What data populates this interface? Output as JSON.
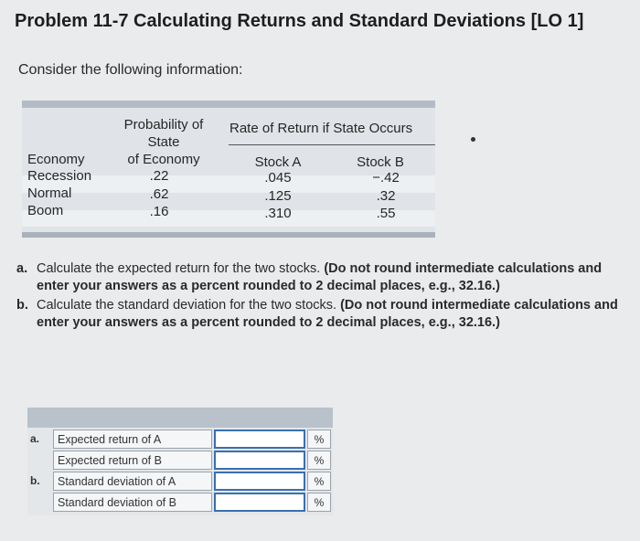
{
  "title": "Problem 11-7 Calculating Returns and Standard Deviations [LO 1]",
  "intro": "Consider the following information:",
  "info_table": {
    "prob_header_line1": "Probability of",
    "prob_header_line2": "State",
    "prob_header_line3": "of Economy",
    "rate_header": "Rate of Return if State Occurs",
    "economy_header": "Economy",
    "stock_a_header": "Stock A",
    "stock_b_header": "Stock B",
    "rows": [
      {
        "state": "Recession",
        "prob": ".22",
        "a": ".045",
        "b": "−.42"
      },
      {
        "state": "Normal",
        "prob": ".62",
        "a": ".125",
        "b": ".32"
      },
      {
        "state": "Boom",
        "prob": ".16",
        "a": ".310",
        "b": ".55"
      }
    ]
  },
  "questions": [
    {
      "label": "a.",
      "text": "Calculate the expected return for the two stocks.",
      "bold": "(Do not round intermediate calculations and enter your answers as a percent rounded to 2 decimal places, e.g., 32.16.)"
    },
    {
      "label": "b.",
      "text": "Calculate the standard deviation for the two stocks.",
      "bold": "(Do not round intermediate calculations and enter your answers as a percent rounded to 2 decimal places, e.g., 32.16.)"
    }
  ],
  "answer_table": {
    "rows": [
      {
        "part": "a.",
        "desc": "Expected return of A",
        "value": "",
        "unit": "%"
      },
      {
        "part": "",
        "desc": "Expected return of B",
        "value": "",
        "unit": "%"
      },
      {
        "part": "b.",
        "desc": "Standard deviation of A",
        "value": "",
        "unit": "%"
      },
      {
        "part": "",
        "desc": "Standard deviation of B",
        "value": "",
        "unit": "%"
      }
    ]
  }
}
